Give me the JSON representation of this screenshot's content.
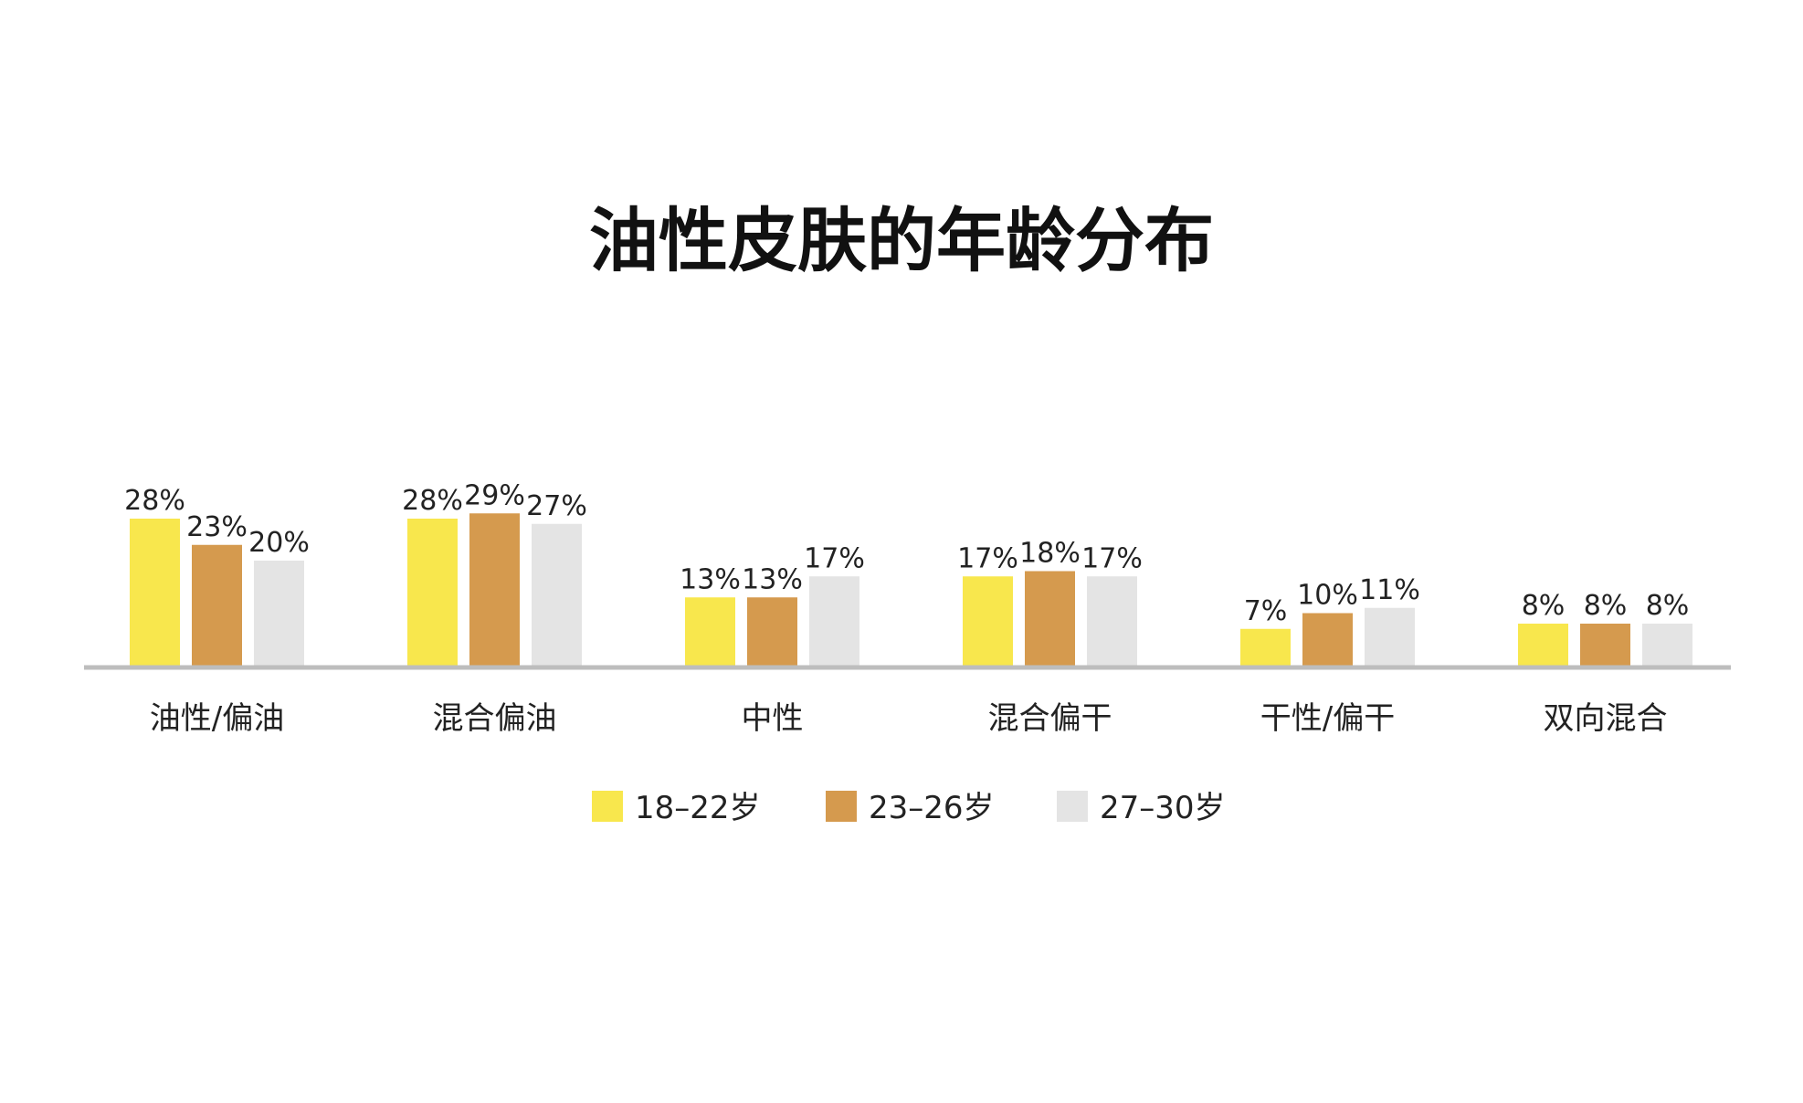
{
  "chart_data": {
    "type": "bar",
    "title": "油性皮肤的年龄分布",
    "categories": [
      "油性/偏油",
      "混合偏油",
      "中性",
      "混合偏干",
      "干性/偏干",
      "双向混合"
    ],
    "series": [
      {
        "name": "18–22岁",
        "color": "#F8E74D",
        "values": [
          28,
          28,
          13,
          17,
          7,
          8
        ]
      },
      {
        "name": "23–26岁",
        "color": "#D59A4E",
        "values": [
          23,
          29,
          13,
          18,
          10,
          8
        ]
      },
      {
        "name": "27–30岁",
        "color": "#E4E4E4",
        "values": [
          20,
          27,
          17,
          17,
          11,
          8
        ]
      }
    ],
    "value_suffix": "%",
    "ylim": [
      0,
      30
    ],
    "grid": false,
    "legend_position": "bottom",
    "baseline_color": "#BDBDBD"
  }
}
